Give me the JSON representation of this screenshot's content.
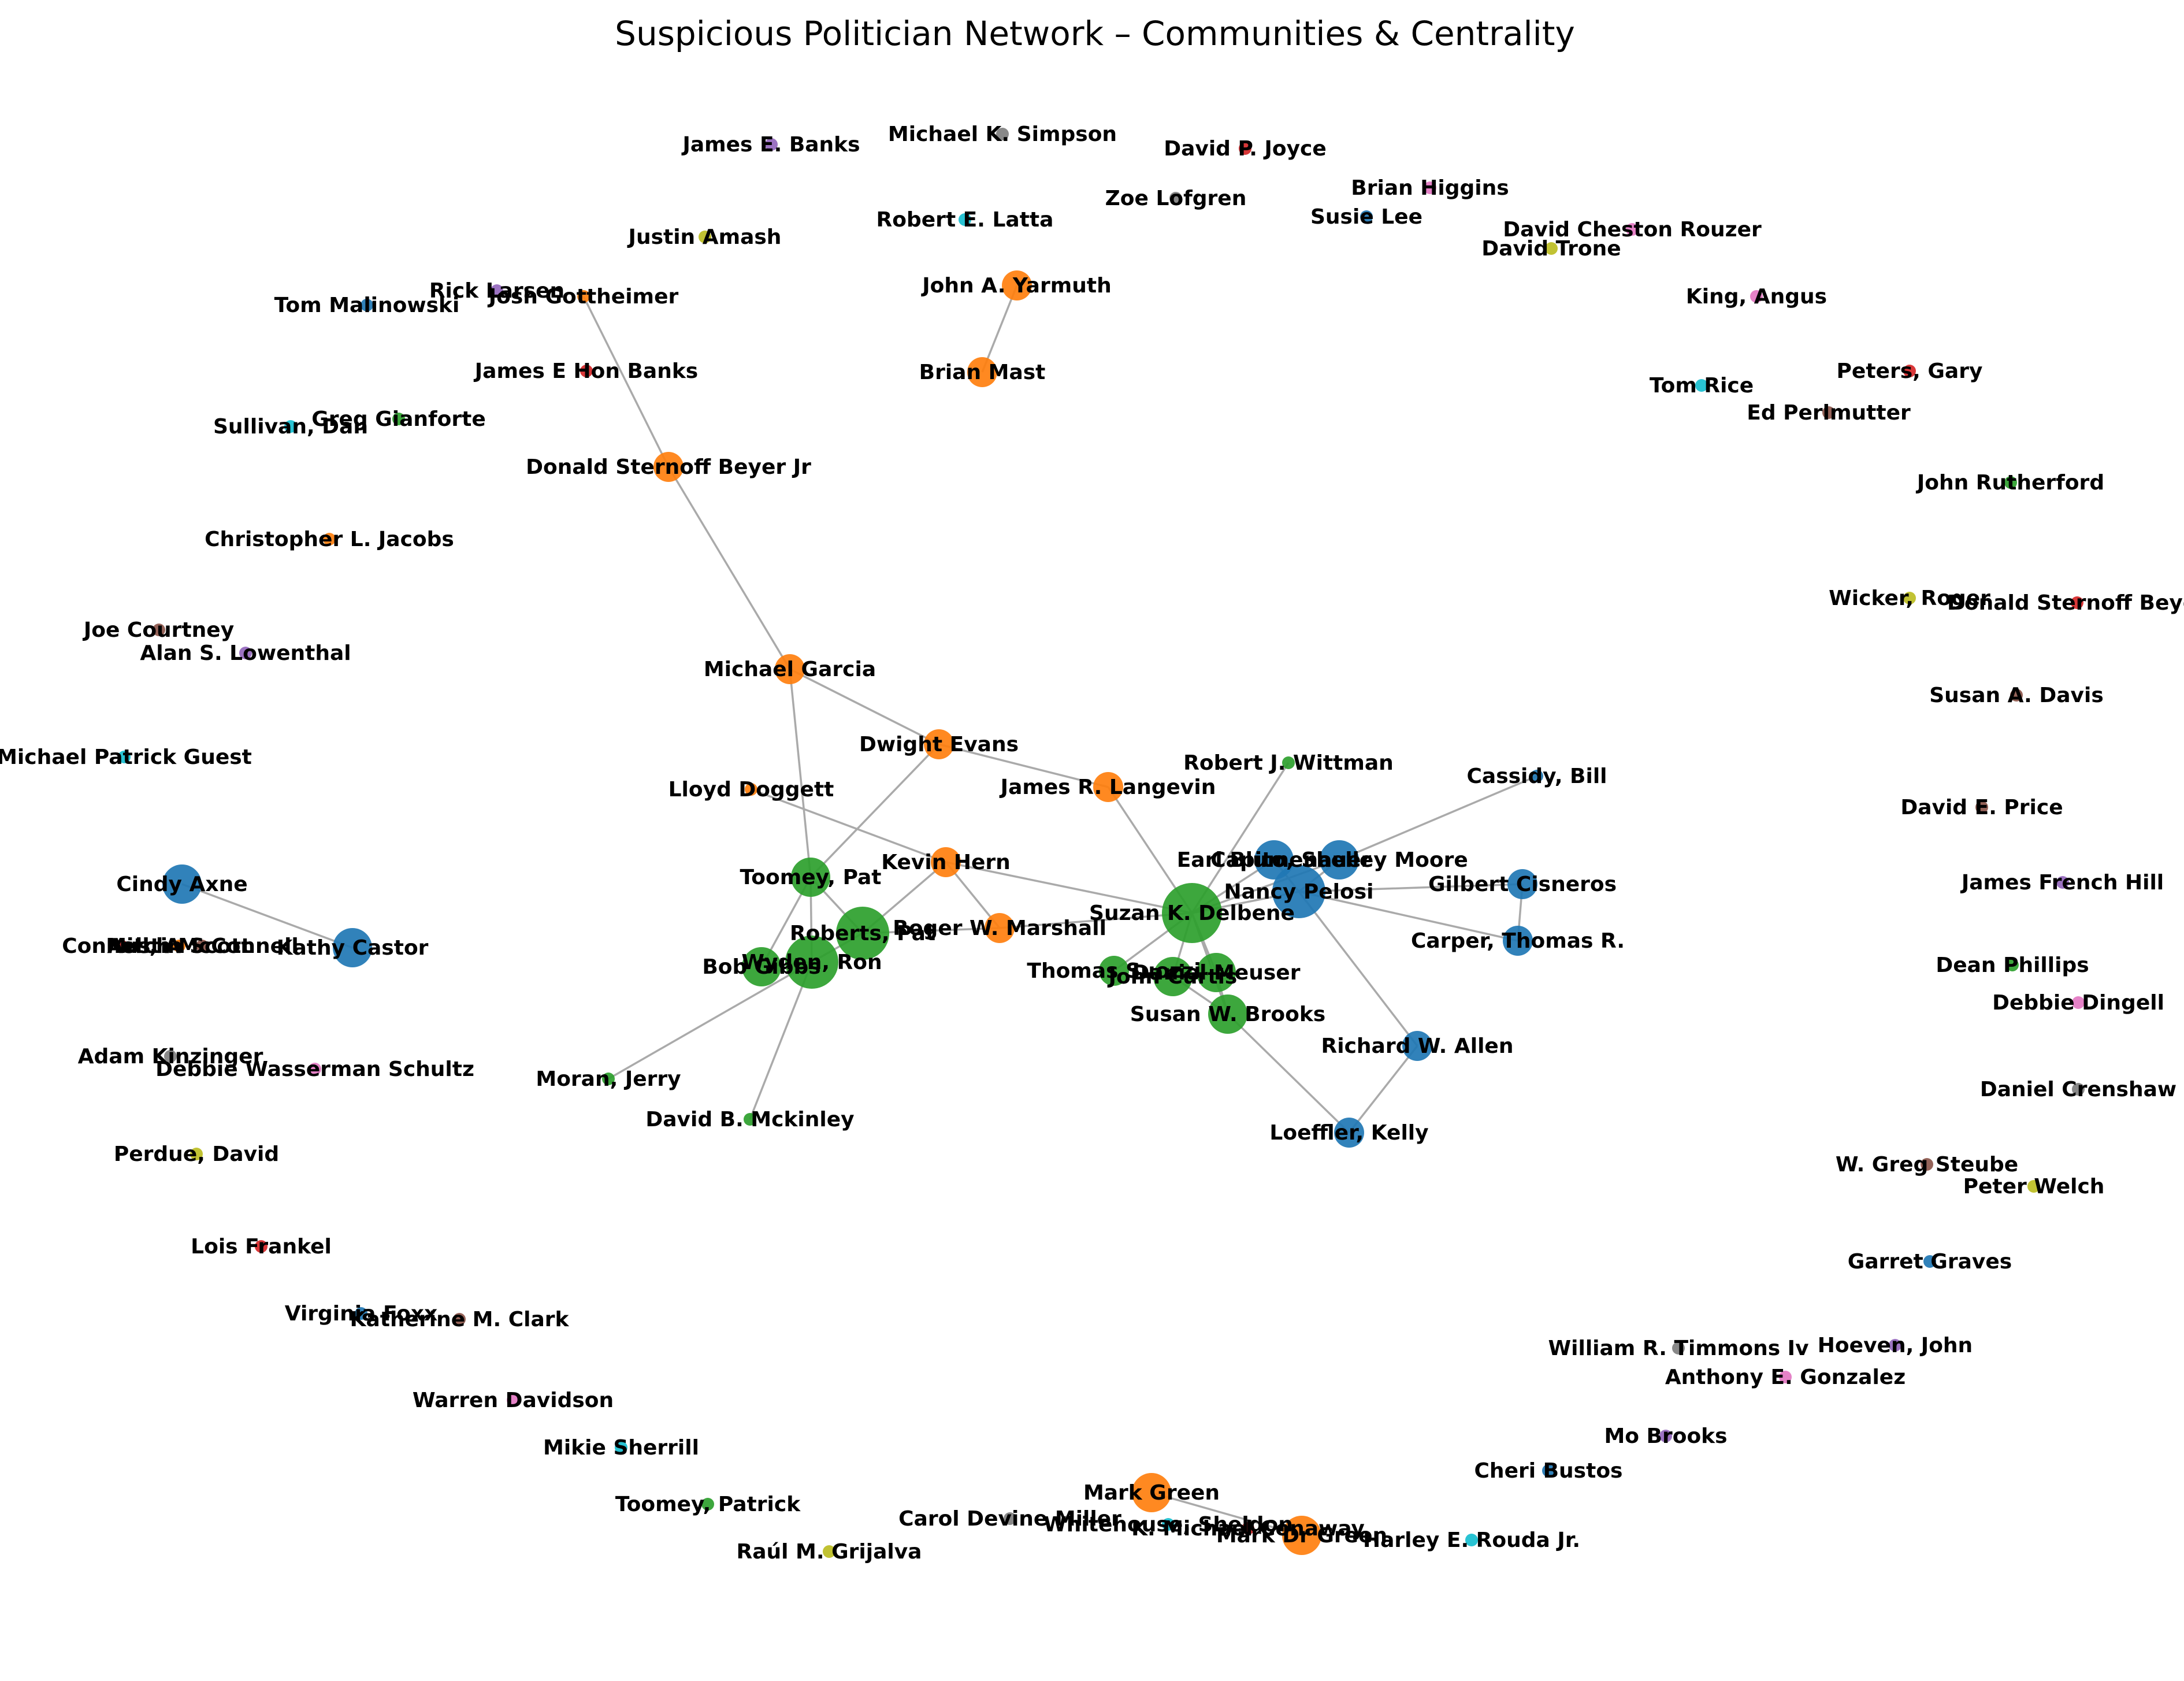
{
  "title": "Suspicious Politician Network – Communities & Centrality",
  "community_colors": {
    "blue": "#1f77b4",
    "orange": "#ff7f0e",
    "green": "#2ca02c",
    "red": "#d62728",
    "purple": "#9467bd",
    "brown": "#8c564b",
    "pink": "#e377c2",
    "gray": "#7f7f7f",
    "olive": "#bcbd22",
    "cyan": "#17becf"
  },
  "nodes": [
    {
      "id": "n1",
      "label": "James E. Banks",
      "c": "purple",
      "s": 1
    },
    {
      "id": "n2",
      "label": "Michael K. Simpson",
      "c": "gray",
      "s": 1
    },
    {
      "id": "n3",
      "label": "David P. Joyce",
      "c": "red",
      "s": 1
    },
    {
      "id": "n4",
      "label": "Brian Higgins",
      "c": "pink",
      "s": 1
    },
    {
      "id": "n5",
      "label": "Zoe Lofgren",
      "c": "gray",
      "s": 1
    },
    {
      "id": "n6",
      "label": "Susie Lee",
      "c": "blue",
      "s": 1
    },
    {
      "id": "n7",
      "label": "Robert E. Latta",
      "c": "cyan",
      "s": 1
    },
    {
      "id": "n8",
      "label": "David Cheston Rouzer",
      "c": "pink",
      "s": 1
    },
    {
      "id": "n9",
      "label": "David Trone",
      "c": "olive",
      "s": 1
    },
    {
      "id": "n10",
      "label": "Justin Amash",
      "c": "olive",
      "s": 1
    },
    {
      "id": "n11",
      "label": "John A. Yarmuth",
      "c": "orange",
      "s": 2
    },
    {
      "id": "n12",
      "label": "Rick Larsen",
      "c": "purple",
      "s": 1
    },
    {
      "id": "n13",
      "label": "Josh Gottheimer",
      "c": "orange",
      "s": 1
    },
    {
      "id": "n14",
      "label": "Tom Malinowski",
      "c": "blue",
      "s": 1
    },
    {
      "id": "n15",
      "label": "King, Angus",
      "c": "pink",
      "s": 1
    },
    {
      "id": "n16",
      "label": "James E Hon Banks",
      "c": "red",
      "s": 1
    },
    {
      "id": "n17",
      "label": "Brian Mast",
      "c": "orange",
      "s": 2
    },
    {
      "id": "n18",
      "label": "Peters, Gary",
      "c": "red",
      "s": 1
    },
    {
      "id": "n19",
      "label": "Tom Rice",
      "c": "cyan",
      "s": 1
    },
    {
      "id": "n20",
      "label": "Ed Perlmutter",
      "c": "brown",
      "s": 1
    },
    {
      "id": "n21",
      "label": "Greg Gianforte",
      "c": "green",
      "s": 1
    },
    {
      "id": "n22",
      "label": "Sullivan, Dan",
      "c": "cyan",
      "s": 1
    },
    {
      "id": "n23",
      "label": "Donald Sternoff Beyer Jr",
      "c": "orange",
      "s": 2
    },
    {
      "id": "n24",
      "label": "John Rutherford",
      "c": "green",
      "s": 1
    },
    {
      "id": "n25",
      "label": "Christopher L. Jacobs",
      "c": "orange",
      "s": 1
    },
    {
      "id": "n26",
      "label": "Wicker, Roger",
      "c": "olive",
      "s": 1
    },
    {
      "id": "n27",
      "label": "Donald Sternoff  Beyer",
      "c": "red",
      "s": 1
    },
    {
      "id": "n28",
      "label": "Joe Courtney",
      "c": "brown",
      "s": 1
    },
    {
      "id": "n29",
      "label": "Alan S. Lowenthal",
      "c": "purple",
      "s": 1
    },
    {
      "id": "n30",
      "label": "Susan A. Davis",
      "c": "brown",
      "s": 1
    },
    {
      "id": "n31",
      "label": "Michael Garcia",
      "c": "orange",
      "s": 2
    },
    {
      "id": "n32",
      "label": "Dwight Evans",
      "c": "orange",
      "s": 2
    },
    {
      "id": "n33",
      "label": "Michael Patrick Guest",
      "c": "cyan",
      "s": 1
    },
    {
      "id": "n34",
      "label": "Robert J. Wittman",
      "c": "green",
      "s": 1
    },
    {
      "id": "n35",
      "label": "Cassidy, Bill",
      "c": "blue",
      "s": 1
    },
    {
      "id": "n36",
      "label": "Lloyd Doggett",
      "c": "orange",
      "s": 1
    },
    {
      "id": "n37",
      "label": "James R. Langevin",
      "c": "orange",
      "s": 2
    },
    {
      "id": "n38",
      "label": "David E. Price",
      "c": "brown",
      "s": 1
    },
    {
      "id": "n39",
      "label": "Earl Blumenauer",
      "c": "blue",
      "s": 3
    },
    {
      "id": "n40",
      "label": "Capito, Shelley Moore",
      "c": "blue",
      "s": 3
    },
    {
      "id": "n41",
      "label": "Kevin Hern",
      "c": "orange",
      "s": 2
    },
    {
      "id": "n42",
      "label": "Toomey, Pat",
      "c": "green",
      "s": 3
    },
    {
      "id": "n43",
      "label": "Nancy Pelosi",
      "c": "blue",
      "s": 4
    },
    {
      "id": "n44",
      "label": "Gilbert Cisneros",
      "c": "blue",
      "s": 2
    },
    {
      "id": "n45",
      "label": "James French Hill",
      "c": "purple",
      "s": 1
    },
    {
      "id": "n46",
      "label": "Cindy Axne",
      "c": "blue",
      "s": 3
    },
    {
      "id": "n47",
      "label": "Suzan K. Delbene",
      "c": "green",
      "s": 5
    },
    {
      "id": "n48",
      "label": "Roberts, Pat",
      "c": "green",
      "s": 4
    },
    {
      "id": "n49",
      "label": "Roger W. Marshall",
      "c": "orange",
      "s": 2
    },
    {
      "id": "n50",
      "label": "Carper, Thomas R.",
      "c": "blue",
      "s": 2
    },
    {
      "id": "n51",
      "label": "Connell, A",
      "c": "red",
      "s": 1
    },
    {
      "id": "n52",
      "label": "Mitch McConnell",
      "c": "brown",
      "s": 1
    },
    {
      "id": "n53",
      "label": "Austin Scott",
      "c": "orange",
      "s": 1
    },
    {
      "id": "n54",
      "label": "Kathy Castor",
      "c": "blue",
      "s": 3
    },
    {
      "id": "n55",
      "label": "Wyden, Ron",
      "c": "green",
      "s": 4
    },
    {
      "id": "n56",
      "label": "Bob Gibbs",
      "c": "green",
      "s": 3
    },
    {
      "id": "n57",
      "label": "Thomas Suozzi",
      "c": "green",
      "s": 2
    },
    {
      "id": "n58",
      "label": "Daniel Meuser",
      "c": "green",
      "s": 3
    },
    {
      "id": "n59",
      "label": "John Curtis",
      "c": "green",
      "s": 3
    },
    {
      "id": "n60",
      "label": "Dean Phillips",
      "c": "green",
      "s": 1
    },
    {
      "id": "n61",
      "label": "Debbie Dingell",
      "c": "pink",
      "s": 1
    },
    {
      "id": "n62",
      "label": "Susan W. Brooks",
      "c": "green",
      "s": 3
    },
    {
      "id": "n63",
      "label": "Richard W. Allen",
      "c": "blue",
      "s": 2
    },
    {
      "id": "n64",
      "label": "Adam Kinzinger",
      "c": "gray",
      "s": 1
    },
    {
      "id": "n65",
      "label": "Debbie Wasserman Schultz",
      "c": "pink",
      "s": 1
    },
    {
      "id": "n66",
      "label": "Moran, Jerry",
      "c": "green",
      "s": 1
    },
    {
      "id": "n67",
      "label": "Daniel Crenshaw",
      "c": "gray",
      "s": 1
    },
    {
      "id": "n68",
      "label": "David B. Mckinley",
      "c": "green",
      "s": 1
    },
    {
      "id": "n69",
      "label": "Loeffler, Kelly",
      "c": "blue",
      "s": 2
    },
    {
      "id": "n70",
      "label": "Perdue, David",
      "c": "olive",
      "s": 1
    },
    {
      "id": "n71",
      "label": "W. Greg Steube",
      "c": "brown",
      "s": 1
    },
    {
      "id": "n72",
      "label": "Peter Welch",
      "c": "olive",
      "s": 1
    },
    {
      "id": "n73",
      "label": "Lois Frankel",
      "c": "red",
      "s": 1
    },
    {
      "id": "n74",
      "label": "Garret Graves",
      "c": "blue",
      "s": 1
    },
    {
      "id": "n75",
      "label": "Virginia Foxx",
      "c": "blue",
      "s": 1
    },
    {
      "id": "n76",
      "label": "Katherine M. Clark",
      "c": "brown",
      "s": 1
    },
    {
      "id": "n77",
      "label": "William R. Timmons Iv",
      "c": "gray",
      "s": 1
    },
    {
      "id": "n78",
      "label": "Hoeven, John",
      "c": "purple",
      "s": 1
    },
    {
      "id": "n79",
      "label": "Anthony E. Gonzalez",
      "c": "pink",
      "s": 1
    },
    {
      "id": "n80",
      "label": "Warren Davidson",
      "c": "pink",
      "s": 1
    },
    {
      "id": "n81",
      "label": "Mo Brooks",
      "c": "purple",
      "s": 1
    },
    {
      "id": "n82",
      "label": "Mikie Sherrill",
      "c": "cyan",
      "s": 1
    },
    {
      "id": "n83",
      "label": "Cheri Bustos",
      "c": "blue",
      "s": 1
    },
    {
      "id": "n84",
      "label": "Mark Green",
      "c": "orange",
      "s": 3
    },
    {
      "id": "n85",
      "label": "Toomey, Patrick",
      "c": "green",
      "s": 1
    },
    {
      "id": "n86",
      "label": "Carol Devine Miller",
      "c": "gray",
      "s": 1
    },
    {
      "id": "n87",
      "label": "Whitehouse, Sheldon",
      "c": "cyan",
      "s": 1
    },
    {
      "id": "n88",
      "label": "K. Michael Conaway",
      "c": "red",
      "s": 1
    },
    {
      "id": "n89",
      "label": "Mark Dr Green",
      "c": "orange",
      "s": 3
    },
    {
      "id": "n90",
      "label": "Harley E. Rouda Jr.",
      "c": "cyan",
      "s": 1
    },
    {
      "id": "n91",
      "label": "Raúl M. Grijalva",
      "c": "olive",
      "s": 1
    }
  ],
  "edges": [
    [
      "n11",
      "n17"
    ],
    [
      "n13",
      "n23"
    ],
    [
      "n23",
      "n31"
    ],
    [
      "n31",
      "n32"
    ],
    [
      "n31",
      "n42"
    ],
    [
      "n32",
      "n42"
    ],
    [
      "n32",
      "n37"
    ],
    [
      "n37",
      "n47"
    ],
    [
      "n36",
      "n41"
    ],
    [
      "n41",
      "n48"
    ],
    [
      "n41",
      "n49"
    ],
    [
      "n41",
      "n47"
    ],
    [
      "n42",
      "n55"
    ],
    [
      "n42",
      "n56"
    ],
    [
      "n42",
      "n48"
    ],
    [
      "n48",
      "n55"
    ],
    [
      "n48",
      "n49"
    ],
    [
      "n55",
      "n56"
    ],
    [
      "n55",
      "n66"
    ],
    [
      "n55",
      "n68"
    ],
    [
      "n47",
      "n49"
    ],
    [
      "n47",
      "n34"
    ],
    [
      "n47",
      "n39"
    ],
    [
      "n47",
      "n40"
    ],
    [
      "n47",
      "n43"
    ],
    [
      "n47",
      "n57"
    ],
    [
      "n47",
      "n58"
    ],
    [
      "n47",
      "n59"
    ],
    [
      "n47",
      "n62"
    ],
    [
      "n59",
      "n62"
    ],
    [
      "n58",
      "n62"
    ],
    [
      "n59",
      "n58"
    ],
    [
      "n43",
      "n39"
    ],
    [
      "n43",
      "n40"
    ],
    [
      "n40",
      "n35"
    ],
    [
      "n43",
      "n44"
    ],
    [
      "n43",
      "n50"
    ],
    [
      "n44",
      "n50"
    ],
    [
      "n43",
      "n63"
    ],
    [
      "n63",
      "n69"
    ],
    [
      "n62",
      "n69"
    ],
    [
      "n46",
      "n54"
    ],
    [
      "n84",
      "n89"
    ]
  ]
}
